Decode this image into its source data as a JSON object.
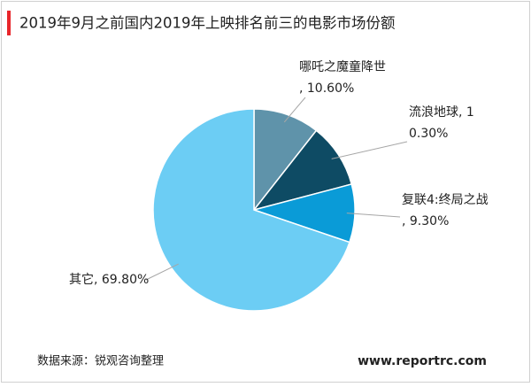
{
  "chart_data": {
    "type": "pie",
    "title": "2019年9月之前国内2019年上映排名前三的电影市场份额",
    "values": [
      10.6,
      10.3,
      9.3,
      69.8
    ],
    "value_labels": [
      "哪吒之魔童降世, 10.60%",
      "流浪地球, 10.30%",
      "复联4:终局之战, 9.30%",
      "其它, 69.80%"
    ],
    "colors": [
      "#5f93aa",
      "#0e4b64",
      "#0a9bd7",
      "#6ccdf4"
    ],
    "source": "数据来源：锐观咨询整理",
    "website": "www.reportrc.com"
  }
}
